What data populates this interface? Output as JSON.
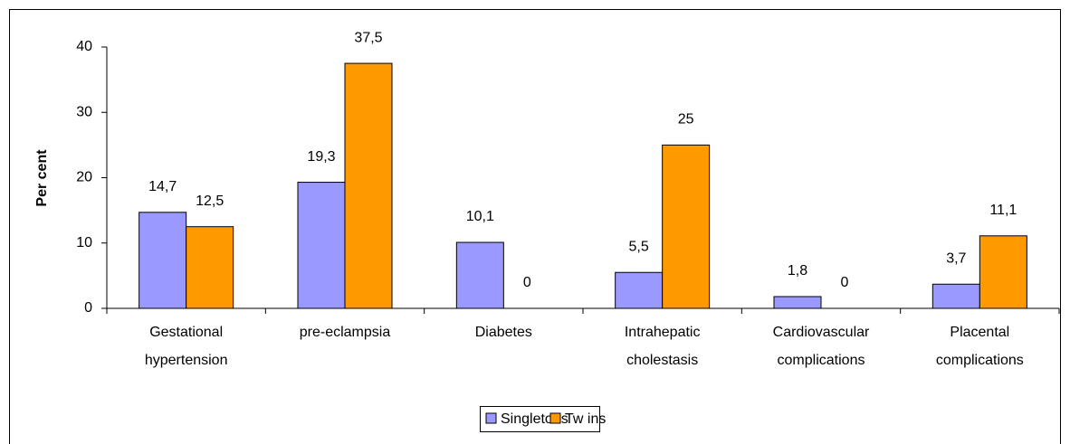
{
  "chart_data": {
    "type": "bar",
    "y_label": "Per cent",
    "categories": [
      "Gestational hypertension",
      "pre-eclampsia",
      "Diabetes",
      "Intrahepatic cholestasis",
      "Cardiovascular complications",
      "Placental complications"
    ],
    "series": [
      {
        "name": "Singletons",
        "color": "#9999ff",
        "values": [
          14.7,
          19.3,
          10.1,
          5.5,
          1.8,
          3.7
        ],
        "value_labels": [
          "14,7",
          "19,3",
          "10,1",
          "5,5",
          "1,8",
          "3,7"
        ]
      },
      {
        "name": "Tw ins",
        "color": "#ff9900",
        "values": [
          12.5,
          37.5,
          0,
          25,
          0,
          11.1
        ],
        "value_labels": [
          "12,5",
          "37,5",
          "0",
          "25",
          "0",
          "11,1"
        ]
      }
    ],
    "ylim": [
      0,
      40
    ],
    "yticks": [
      0,
      10,
      20,
      30,
      40
    ],
    "grid": false,
    "legend": "bottom"
  }
}
